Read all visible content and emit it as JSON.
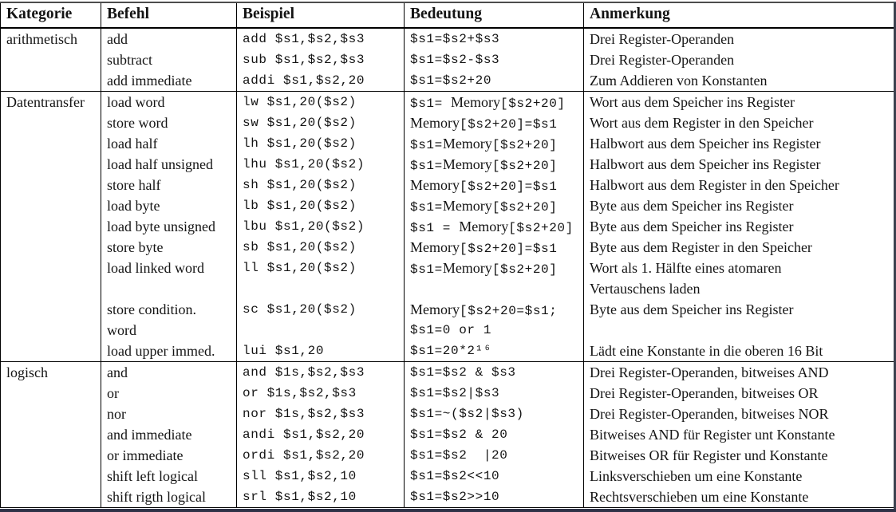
{
  "colors": {
    "text": "#141414",
    "table_border": "#000000",
    "frame_top": "#4d4d4d",
    "frame_right": "#3d4250",
    "frame_bottom": "#2f3247",
    "background": "#ffffff"
  },
  "table": {
    "columns": [
      "Kategorie",
      "Befehl",
      "Beispiel",
      "Bedeutung",
      "Anmerkung"
    ],
    "groups": [
      {
        "category": "arithmetisch",
        "rows": [
          {
            "befehl": "add",
            "beispiel": "add $s1,$s2,$s3",
            "bedeutung": "$s1=$s2+$s3",
            "anmerkung": "Drei Register-Operanden"
          },
          {
            "befehl": "subtract",
            "beispiel": "sub $s1,$s2,$s3",
            "bedeutung": "$s1=$s2-$s3",
            "anmerkung": "Drei Register-Operanden"
          },
          {
            "befehl": "add immediate",
            "beispiel": "addi $s1,$s2,20",
            "bedeutung": "$s1=$s2+20",
            "anmerkung": "Zum Addieren von Konstanten"
          }
        ]
      },
      {
        "category": "Datentransfer",
        "rows": [
          {
            "befehl": "load word",
            "beispiel": "lw $s1,20($s2)",
            "bedeutung": "$s1= Memory[$s2+20]",
            "anmerkung": "Wort aus dem Speicher ins Register"
          },
          {
            "befehl": "store word",
            "beispiel": "sw $s1,20($s2)",
            "bedeutung": "Memory[$s2+20]=$s1",
            "anmerkung": "Wort aus dem Register in den Speicher"
          },
          {
            "befehl": "load half",
            "beispiel": "lh $s1,20($s2)",
            "bedeutung": "$s1=Memory[$s2+20]",
            "anmerkung": "Halbwort aus dem Speicher ins Register"
          },
          {
            "befehl": "load half unsigned",
            "beispiel": "lhu $s1,20($s2)",
            "bedeutung": "$s1=Memory[$s2+20]",
            "anmerkung": "Halbwort aus dem Speicher ins Register"
          },
          {
            "befehl": "store half",
            "beispiel": "sh $s1,20($s2)",
            "bedeutung": "Memory[$s2+20]=$s1",
            "anmerkung": "Halbwort aus dem Register in den Speicher"
          },
          {
            "befehl": "load byte",
            "beispiel": "lb $s1,20($s2)",
            "bedeutung": "$s1=Memory[$s2+20]",
            "anmerkung": "Byte aus dem Speicher ins Register"
          },
          {
            "befehl": "load byte unsigned",
            "beispiel": "lbu $s1,20($s2)",
            "bedeutung": "$s1 = Memory[$s2+20]",
            "anmerkung": "Byte aus dem Speicher ins Register"
          },
          {
            "befehl": "store byte",
            "beispiel": "sb $s1,20($s2)",
            "bedeutung": "Memory[$s2+20]=$s1",
            "anmerkung": "Byte aus dem Register in den Speicher"
          },
          {
            "befehl": "load linked word",
            "beispiel": "ll $s1,20($s2)",
            "bedeutung": "$s1=Memory[$s2+20]",
            "anmerkung": "Wort als 1. Hälfte eines atomaren"
          },
          {
            "befehl": "",
            "beispiel": "",
            "bedeutung": "",
            "anmerkung": "Vertauschens laden"
          },
          {
            "befehl": "store condition.",
            "beispiel": "sc $s1,20($s2)",
            "bedeutung": "Memory[$s2+20=$s1;",
            "anmerkung": "Byte aus dem Speicher ins Register"
          },
          {
            "befehl": "word",
            "beispiel": "",
            "bedeutung": "$s1=0 or 1",
            "anmerkung": ""
          },
          {
            "befehl": "load upper immed.",
            "beispiel": "lui $s1,20",
            "bedeutung": "$s1=20*2¹⁶",
            "anmerkung": "Lädt eine Konstante in die oberen 16 Bit"
          }
        ]
      },
      {
        "category": "logisch",
        "rows": [
          {
            "befehl": "and",
            "beispiel": "and $1s,$s2,$s3",
            "bedeutung": "$s1=$s2 & $s3",
            "anmerkung": "Drei Register-Operanden, bitweises AND"
          },
          {
            "befehl": "or",
            "beispiel": "or $1s,$s2,$s3",
            "bedeutung": "$s1=$s2|$s3",
            "anmerkung": "Drei Register-Operanden, bitweises OR"
          },
          {
            "befehl": "nor",
            "beispiel": "nor $1s,$s2,$s3",
            "bedeutung": "$s1=~($s2|$s3)",
            "anmerkung": "Drei Register-Operanden, bitweises NOR"
          },
          {
            "befehl": "and immediate",
            "beispiel": "andi $s1,$s2,20",
            "bedeutung": "$s1=$s2 & 20",
            "anmerkung": "Bitweises AND für Register unt Konstante"
          },
          {
            "befehl": "or immediate",
            "beispiel": "ordi $s1,$s2,20",
            "bedeutung": "$s1=$s2  |20",
            "anmerkung": "Bitweises OR für Register und Konstante"
          },
          {
            "befehl": "shift left logical",
            "beispiel": "sll $s1,$s2,10",
            "bedeutung": "$s1=$s2<<10",
            "anmerkung": "Linksverschieben um eine Konstante"
          },
          {
            "befehl": "shift rigth logical",
            "beispiel": "srl $s1,$s2,10",
            "bedeutung": "$s1=$s2>>10",
            "anmerkung": "Rechtsverschieben um eine Konstante"
          }
        ]
      }
    ]
  }
}
